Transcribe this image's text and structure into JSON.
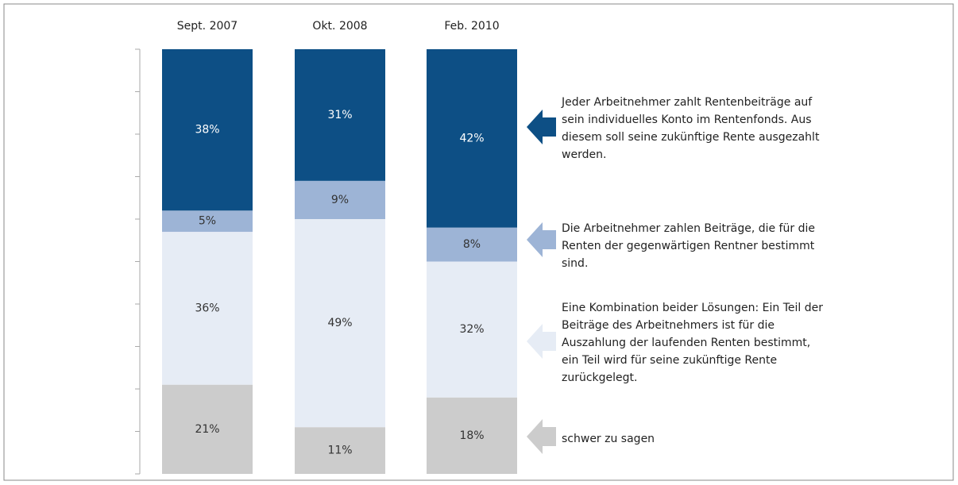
{
  "chart_data": {
    "type": "stacked_bar",
    "categories": [
      "Sept. 2007",
      "Okt. 2008",
      "Feb. 2010"
    ],
    "ylim": [
      0,
      100
    ],
    "yticks": [
      0,
      10,
      20,
      30,
      40,
      50,
      60,
      70,
      80,
      90,
      100
    ],
    "series": [
      {
        "name": "schwer zu sagen",
        "color": "#cccccc",
        "values": [
          21,
          11,
          18
        ],
        "value_labels": [
          "21%",
          "11%",
          "18%"
        ]
      },
      {
        "name": "Eine Kombination beider Lösungen: Ein Teil der Beiträge des Arbeitnehmers ist für die Auszahlung der laufenden Renten bestimmt, ein Teil wird für seine zukünftige Rente zurückgelegt.",
        "color": "#e6ecf5",
        "values": [
          36,
          49,
          32
        ],
        "value_labels": [
          "36%",
          "49%",
          "32%"
        ]
      },
      {
        "name": "Die Arbeitnehmer zahlen Beiträge, die für die Renten der gegenwärtigen Rentner bestimmt sind.",
        "color": "#9db4d6",
        "values": [
          5,
          9,
          8
        ],
        "value_labels": [
          "5%",
          "9%",
          "8%"
        ]
      },
      {
        "name": "Jeder Arbeitnehmer zahlt Rentenbeiträge auf sein individuelles Konto im Rentenfonds. Aus diesem soll seine zukünftige Rente ausgezahlt werden.",
        "color": "#0d4f85",
        "values": [
          38,
          31,
          42
        ],
        "value_labels": [
          "38%",
          "31%",
          "42%"
        ]
      }
    ]
  }
}
